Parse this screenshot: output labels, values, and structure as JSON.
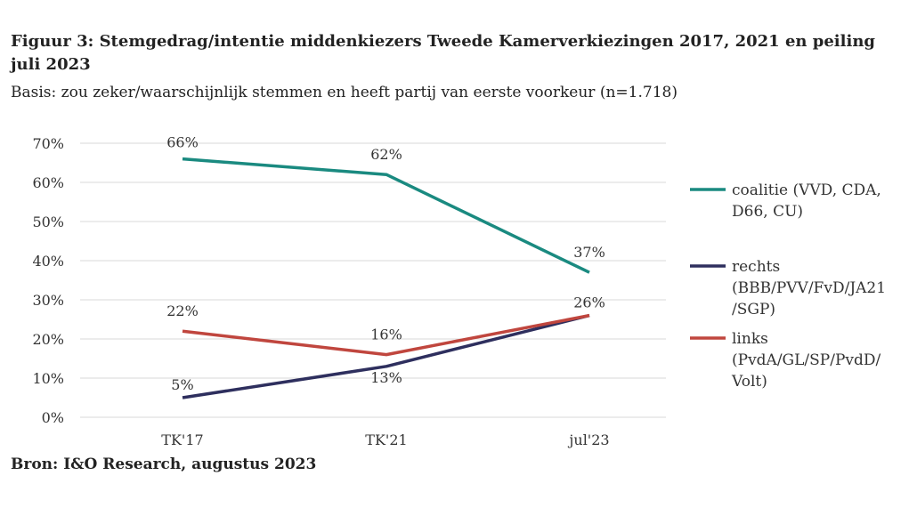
{
  "header": {
    "title": "Figuur 3: Stemgedrag/intentie middenkiezers Tweede Kamerverkiezingen 2017, 2021 en peiling juli 2023",
    "subtitle": "Basis: zou zeker/waarschijnlijk stemmen en heeft partij van eerste voorkeur (n=1.718)"
  },
  "footer": {
    "source": "Bron: I&O Research, augustus 2023"
  },
  "chart_data": {
    "type": "line",
    "title": "Figuur 3: Stemgedrag/intentie middenkiezers Tweede Kamerverkiezingen 2017, 2021 en peiling juli 2023",
    "subtitle": "Basis: zou zeker/waarschijnlijk stemmen en heeft partij van eerste voorkeur (n=1.718)",
    "categories": [
      "TK'17",
      "TK'21",
      "jul'23"
    ],
    "yticks": [
      "0%",
      "10%",
      "20%",
      "30%",
      "40%",
      "50%",
      "60%",
      "70%"
    ],
    "ylim": [
      0,
      70
    ],
    "grid": "horizontal",
    "legend_position": "right",
    "series": [
      {
        "name": "coalitie (VVD, CDA, D66, CU)",
        "legend_lines": [
          "coalitie (VVD, CDA,",
          "D66, CU)"
        ],
        "color": "#1a8a80",
        "values": [
          66,
          62,
          37
        ],
        "labels": [
          "66%",
          "62%",
          "37%"
        ]
      },
      {
        "name": "rechts (BBB/PVV/FvD/JA21/SGP)",
        "legend_lines": [
          "rechts",
          "(BBB/PVV/FvD/JA21",
          "/SGP)"
        ],
        "color": "#2e2f5e",
        "values": [
          5,
          13,
          26
        ],
        "labels": [
          "5%",
          "13%",
          "26%"
        ]
      },
      {
        "name": "links (PvdA/GL/SP/PvdD/Volt)",
        "legend_lines": [
          "links",
          "(PvdA/GL/SP/PvdD/",
          "Volt)"
        ],
        "color": "#c0463e",
        "values": [
          22,
          16,
          26
        ],
        "labels": [
          "22%",
          "16%",
          ""
        ]
      }
    ]
  }
}
